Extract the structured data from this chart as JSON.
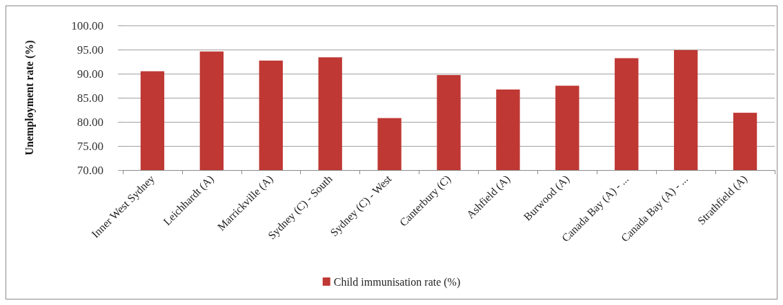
{
  "chart_data": {
    "type": "bar",
    "ylabel": "Unemployment rate (%)",
    "categories": [
      "Inner West Sydney",
      "Leichhardt (A)",
      "Marrickville (A)",
      "Sydney (C) - South",
      "Sydney (C) - West",
      "Canterbury (C)",
      "Ashfield (A)",
      "Burwood (A)",
      "Canada Bay (A) - ...",
      "Canada Bay (A) - ...",
      "Strathfield (A)"
    ],
    "series": [
      {
        "name": "Child immunisation rate (%)",
        "color": "#bf3834",
        "values": [
          90.5,
          94.6,
          92.7,
          93.4,
          80.8,
          89.7,
          86.7,
          87.5,
          93.2,
          94.9,
          81.9
        ]
      }
    ],
    "ylim": [
      70,
      100
    ],
    "yticks": [
      {
        "value": 70,
        "label": "70.00"
      },
      {
        "value": 75,
        "label": "75.00"
      },
      {
        "value": 80,
        "label": "80.00"
      },
      {
        "value": 85,
        "label": "85.00"
      },
      {
        "value": 90,
        "label": "90.00"
      },
      {
        "value": 95,
        "label": "95.00"
      },
      {
        "value": 100,
        "label": "100.00"
      }
    ],
    "grid": "y",
    "legend": "bottom"
  }
}
